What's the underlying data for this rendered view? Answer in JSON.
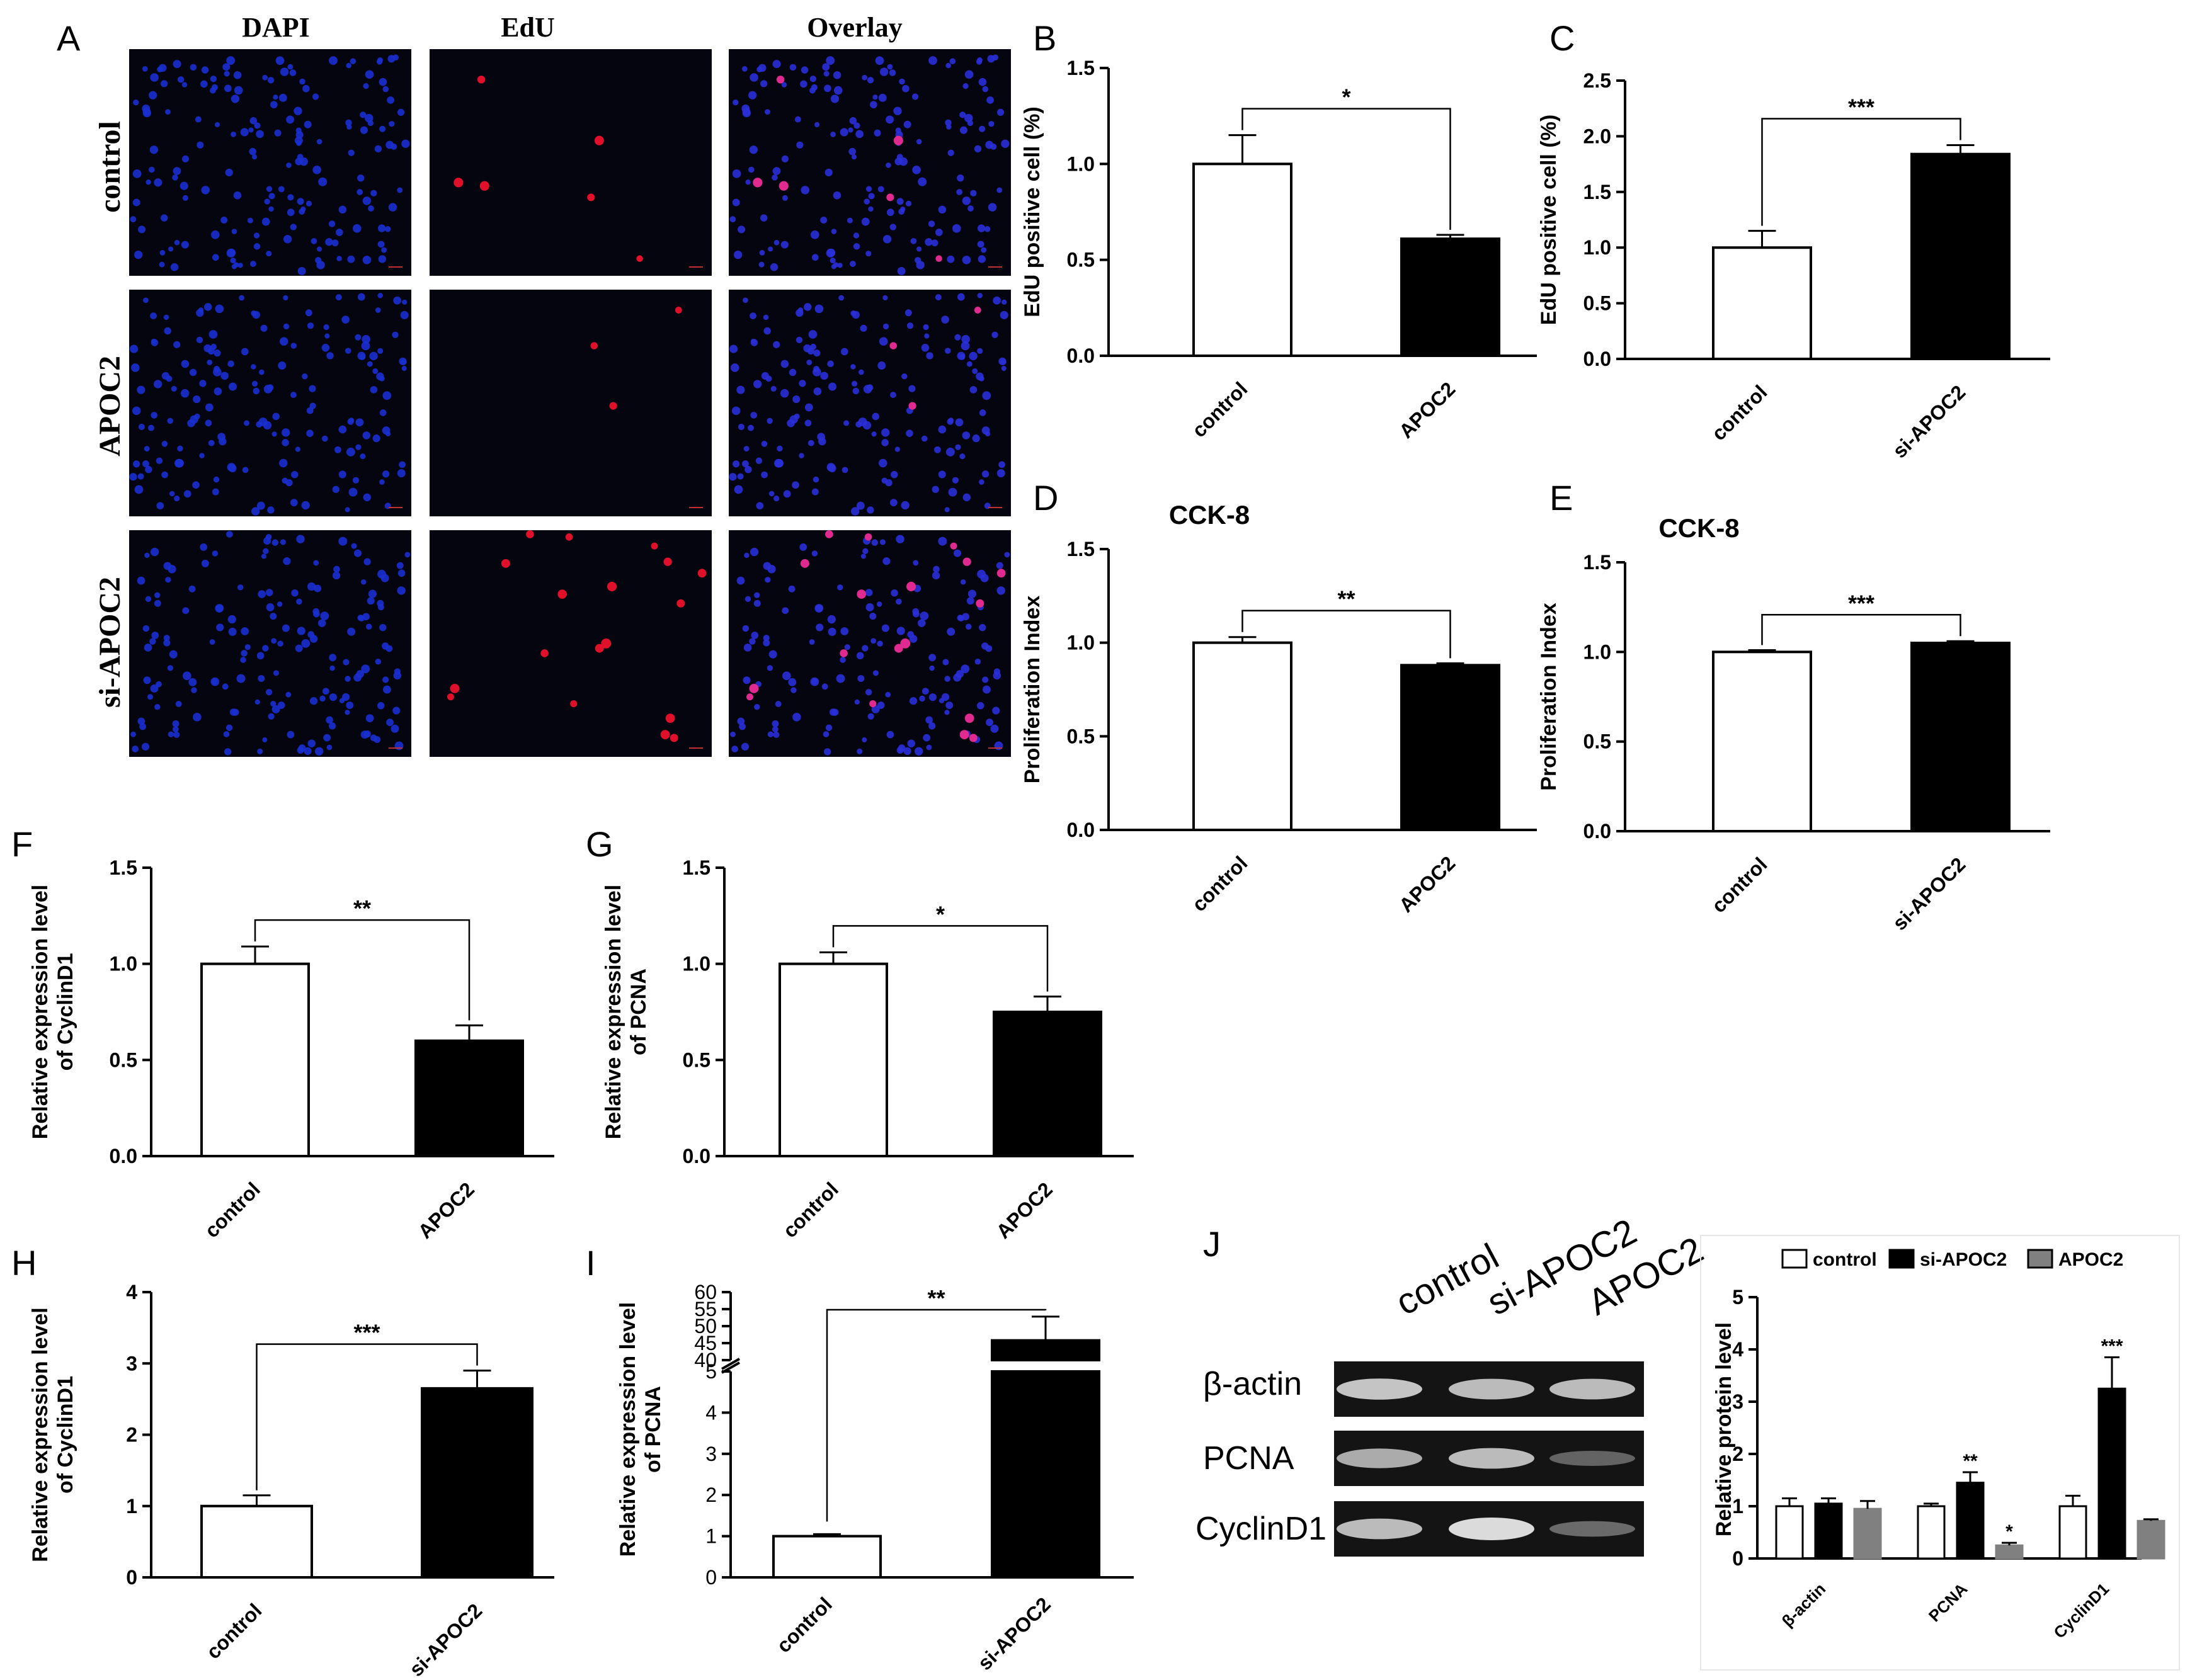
{
  "panel_letters": [
    "A",
    "B",
    "C",
    "D",
    "E",
    "F",
    "G",
    "H",
    "I",
    "J"
  ],
  "micrographs": {
    "columns": [
      "DAPI",
      "EdU",
      "Overlay"
    ],
    "rows": [
      "control",
      "APOC2",
      "si-APOC2"
    ],
    "colors": {
      "dapi": "#1a2fd0",
      "edu": "#e0102a",
      "overlay_nucleus": "#2a2fd8",
      "overlay_pos": "#e02a90",
      "background": "#05050f"
    }
  },
  "western_blot": {
    "lanes": [
      "control",
      "si-APOC2",
      "APOC2"
    ],
    "bands": [
      "β-actin",
      "PCNA",
      "CyclinD1"
    ],
    "intensity": {
      "β-actin": [
        0.85,
        0.8,
        0.8
      ],
      "PCNA": [
        0.7,
        0.8,
        0.25
      ],
      "CyclinD1": [
        0.8,
        1.0,
        0.3
      ]
    }
  },
  "chart_data": [
    {
      "panel": "B",
      "type": "bar",
      "categories": [
        "control",
        "APOC2"
      ],
      "values": [
        1.0,
        0.61
      ],
      "errors": [
        0.15,
        0.02
      ],
      "fills": [
        "#ffffff",
        "#000000"
      ],
      "ylabel": "EdU positive cell (%)",
      "ylim": [
        0,
        1.5
      ],
      "yticks": [
        "0.0",
        "0.5",
        "1.0",
        "1.5"
      ],
      "significance": "*",
      "title": ""
    },
    {
      "panel": "C",
      "type": "bar",
      "categories": [
        "control",
        "si-APOC2"
      ],
      "values": [
        1.0,
        1.84
      ],
      "errors": [
        0.15,
        0.08
      ],
      "fills": [
        "#ffffff",
        "#000000"
      ],
      "ylabel": "EdU positive cell (%)",
      "ylim": [
        0,
        2.5
      ],
      "yticks": [
        "0.0",
        "0.5",
        "1.0",
        "1.5",
        "2.0",
        "2.5"
      ],
      "significance": "***",
      "title": ""
    },
    {
      "panel": "D",
      "type": "bar",
      "categories": [
        "control",
        "APOC2"
      ],
      "values": [
        1.0,
        0.88
      ],
      "errors": [
        0.03,
        0.01
      ],
      "fills": [
        "#ffffff",
        "#000000"
      ],
      "ylabel": "Proliferation Index",
      "ylim": [
        0,
        1.5
      ],
      "yticks": [
        "0.0",
        "0.5",
        "1.0",
        "1.5"
      ],
      "significance": "**",
      "title": "CCK-8"
    },
    {
      "panel": "E",
      "type": "bar",
      "categories": [
        "control",
        "si-APOC2"
      ],
      "values": [
        1.0,
        1.05
      ],
      "errors": [
        0.01,
        0.01
      ],
      "fills": [
        "#ffffff",
        "#000000"
      ],
      "ylabel": "Proliferation Index",
      "ylim": [
        0,
        1.5
      ],
      "yticks": [
        "0.0",
        "0.5",
        "1.0",
        "1.5"
      ],
      "significance": "***",
      "title": "CCK-8"
    },
    {
      "panel": "F",
      "type": "bar",
      "categories": [
        "control",
        "APOC2"
      ],
      "values": [
        1.0,
        0.6
      ],
      "errors": [
        0.09,
        0.08
      ],
      "fills": [
        "#ffffff",
        "#000000"
      ],
      "ylabel": [
        "Relative expression level",
        "of CyclinD1"
      ],
      "ylim": [
        0,
        1.5
      ],
      "yticks": [
        "0.0",
        "0.5",
        "1.0",
        "1.5"
      ],
      "significance": "**",
      "title": ""
    },
    {
      "panel": "G",
      "type": "bar",
      "categories": [
        "control",
        "APOC2"
      ],
      "values": [
        1.0,
        0.75
      ],
      "errors": [
        0.06,
        0.08
      ],
      "fills": [
        "#ffffff",
        "#000000"
      ],
      "ylabel": [
        "Relative expression level",
        "of PCNA"
      ],
      "ylim": [
        0,
        1.5
      ],
      "yticks": [
        "0.0",
        "0.5",
        "1.0",
        "1.5"
      ],
      "significance": "*",
      "title": ""
    },
    {
      "panel": "H",
      "type": "bar",
      "categories": [
        "control",
        "si-APOC2"
      ],
      "values": [
        1.0,
        2.65
      ],
      "errors": [
        0.15,
        0.25
      ],
      "fills": [
        "#ffffff",
        "#000000"
      ],
      "ylabel": [
        "Relative expression level",
        "of CyclinD1"
      ],
      "ylim": [
        0,
        4
      ],
      "yticks": [
        "0",
        "1",
        "2",
        "3",
        "4"
      ],
      "significance": "***",
      "title": ""
    },
    {
      "panel": "I",
      "type": "bar",
      "categories": [
        "control",
        "si-APOC2"
      ],
      "values": [
        1.0,
        45.8
      ],
      "errors": [
        0.05,
        7.0
      ],
      "fills": [
        "#ffffff",
        "#000000"
      ],
      "ylabel": [
        "Relative expression level",
        "of PCNA"
      ],
      "axis_break": {
        "lower": [
          0,
          5
        ],
        "upper": [
          40,
          60
        ]
      },
      "yticks_lower": [
        "0",
        "1",
        "2",
        "3",
        "4",
        "5"
      ],
      "yticks_upper": [
        "40",
        "45",
        "50",
        "55",
        "60"
      ],
      "significance": "**",
      "title": ""
    },
    {
      "panel": "J",
      "type": "bar",
      "categories": [
        "β-actin",
        "PCNA",
        "CyclinD1"
      ],
      "series": [
        {
          "name": "control",
          "values": [
            1.0,
            1.0,
            1.0
          ],
          "errors": [
            0.15,
            0.05,
            0.2
          ],
          "color": "#ffffff"
        },
        {
          "name": "si-APOC2",
          "values": [
            1.05,
            1.45,
            3.25
          ],
          "errors": [
            0.1,
            0.2,
            0.6
          ],
          "color": "#000000"
        },
        {
          "name": "APOC2",
          "values": [
            0.95,
            0.25,
            0.72
          ],
          "errors": [
            0.15,
            0.05,
            0.03
          ],
          "color": "#808080"
        }
      ],
      "stars": [
        [
          "",
          "",
          ""
        ],
        [
          "",
          "**",
          "*"
        ],
        [
          "",
          "***",
          ""
        ]
      ],
      "ylabel": "Relative protein level",
      "ylim": [
        0,
        5
      ],
      "yticks": [
        "0",
        "1",
        "2",
        "3",
        "4",
        "5"
      ],
      "legend_position": "top",
      "title": ""
    }
  ]
}
